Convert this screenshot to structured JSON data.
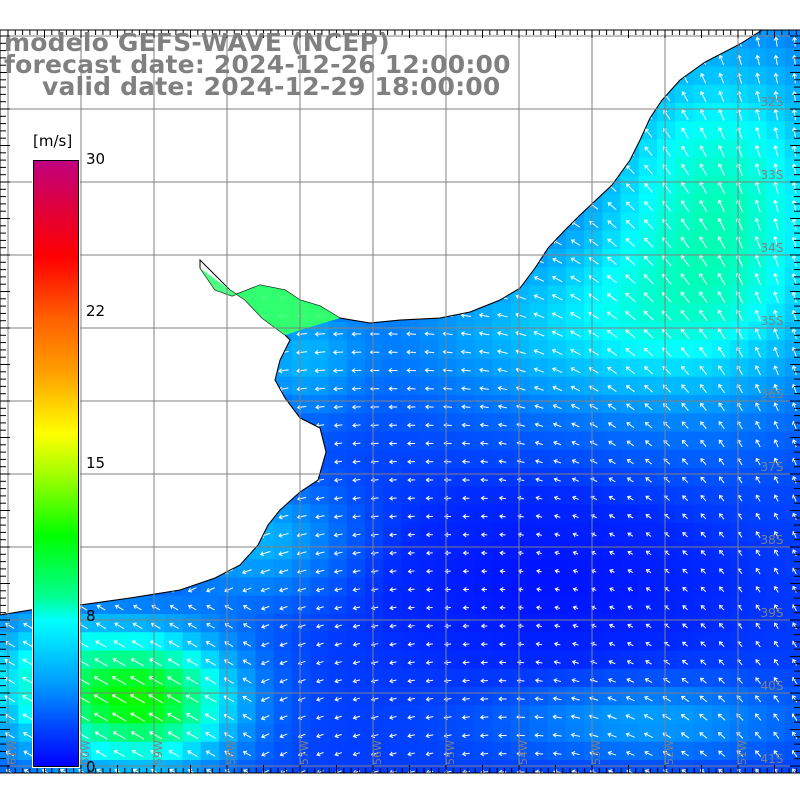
{
  "title": {
    "model": "modelo GEFS-WAVE (NCEP)",
    "forecast": "forecast date: 2024-12-26 12:00:00",
    "valid": "valid date: 2024-12-29 18:00:00"
  },
  "colorbar": {
    "unit": "[m/s]",
    "ticks": [
      "30",
      "22",
      "15",
      "8",
      "0"
    ],
    "range": [
      0,
      30
    ]
  },
  "axes": {
    "lon_labels": [
      "61W",
      "60W",
      "59W",
      "58W",
      "57W",
      "56W",
      "55W",
      "54W",
      "53W",
      "52W",
      "51W"
    ],
    "lat_labels": [
      "32S",
      "33S",
      "34S",
      "35S",
      "36S",
      "37S",
      "38S",
      "39S",
      "40S",
      "41S"
    ]
  },
  "colors": {
    "title": "#808080",
    "grid": "#808080",
    "land": "#ffffff",
    "coast": "#000000",
    "arrow": "#ffffff"
  }
}
